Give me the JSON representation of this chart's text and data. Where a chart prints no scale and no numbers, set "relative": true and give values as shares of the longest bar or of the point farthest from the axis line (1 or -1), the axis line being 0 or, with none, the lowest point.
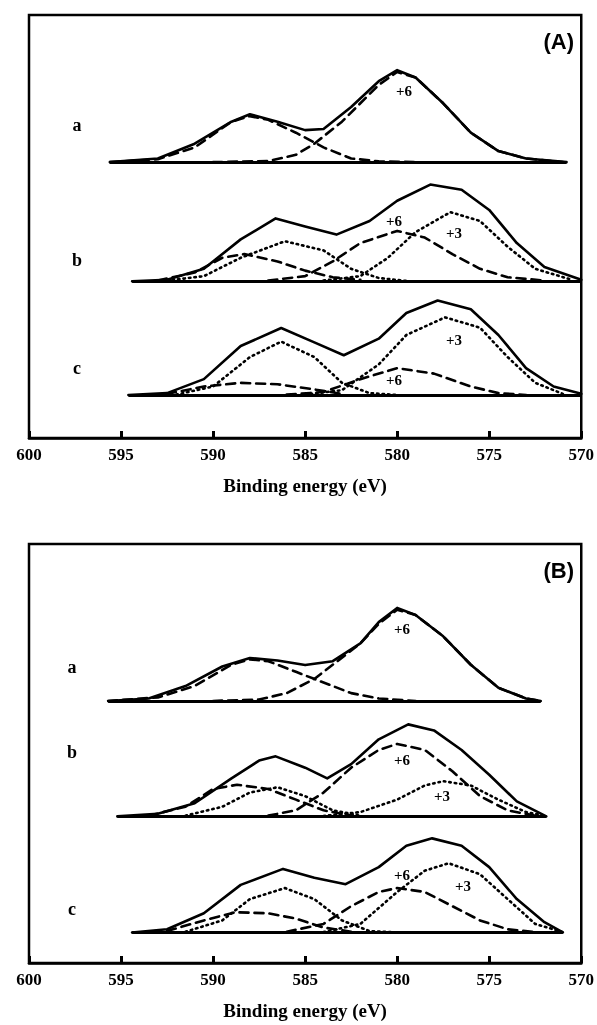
{
  "chart_data": [
    {
      "type": "line",
      "title": "(A)",
      "xlabel": "Binding energy (eV)",
      "relative": true,
      "marker": "none",
      "xlim": [
        600,
        570
      ],
      "xticks": [
        600,
        595,
        590,
        585,
        580,
        575,
        570
      ],
      "annotations": [
        "a",
        "+6",
        "b",
        "+6",
        "+3",
        "c",
        "+3",
        "+6"
      ],
      "ref_lines": [
        {
          "axis": "y",
          "value": 0.75,
          "color": "#000000"
        },
        {
          "axis": "y",
          "value": 0.426,
          "color": "#000000"
        },
        {
          "axis": "y",
          "value": 0.117,
          "color": "#000000"
        }
      ],
      "series": [
        {
          "color": "#000000",
          "line_style": "solid",
          "x": [
            595.6,
            593,
            591,
            589,
            588,
            586.5,
            585,
            584,
            582.5,
            581,
            580,
            579,
            577.5,
            576,
            574.5,
            573,
            570.8
          ],
          "values": [
            0.75,
            0.76,
            0.8,
            0.86,
            0.88,
            0.86,
            0.837,
            0.84,
            0.9,
            0.97,
            1.0,
            0.98,
            0.91,
            0.83,
            0.78,
            0.76,
            0.75
          ]
        },
        {
          "color": "#000000",
          "line_style": "dashed",
          "x": [
            595.6,
            593,
            591,
            589,
            588,
            587,
            585.5,
            584,
            582.5,
            581,
            579
          ],
          "values": [
            0.75,
            0.758,
            0.79,
            0.86,
            0.875,
            0.865,
            0.83,
            0.79,
            0.76,
            0.752,
            0.75
          ]
        },
        {
          "color": "#000000",
          "line_style": "dashed",
          "x": [
            590,
            587,
            585.5,
            584.5,
            583,
            582,
            581,
            580,
            579,
            577.5,
            576,
            574.5,
            573,
            571
          ],
          "values": [
            0.75,
            0.753,
            0.77,
            0.8,
            0.86,
            0.91,
            0.96,
            0.995,
            0.98,
            0.91,
            0.83,
            0.78,
            0.76,
            0.75
          ]
        },
        {
          "color": "#000000",
          "line_style": "solid",
          "x": [
            594.4,
            592.5,
            590.5,
            588.5,
            586.6,
            585,
            583.3,
            581.5,
            580,
            578.2,
            576.5,
            575,
            573.5,
            572,
            570
          ],
          "values": [
            0.426,
            0.43,
            0.46,
            0.54,
            0.597,
            0.575,
            0.553,
            0.59,
            0.645,
            0.689,
            0.675,
            0.62,
            0.53,
            0.465,
            0.43
          ]
        },
        {
          "color": "#000000",
          "line_style": "dotted",
          "x": [
            592.5,
            590.5,
            588.5,
            586.1,
            584,
            582.5,
            581,
            579.5
          ],
          "values": [
            0.428,
            0.44,
            0.49,
            0.535,
            0.51,
            0.46,
            0.435,
            0.427
          ]
        },
        {
          "color": "#000000",
          "line_style": "dotted",
          "x": [
            584,
            582,
            580.5,
            579,
            577.1,
            575.5,
            574,
            572.5,
            570.5
          ],
          "values": [
            0.428,
            0.44,
            0.49,
            0.56,
            0.614,
            0.59,
            0.52,
            0.46,
            0.43
          ]
        },
        {
          "color": "#000000",
          "line_style": "dashed",
          "x": [
            593,
            591,
            589.5,
            588.3,
            586.5,
            585,
            583.5,
            582
          ],
          "values": [
            0.428,
            0.45,
            0.49,
            0.5,
            0.48,
            0.455,
            0.437,
            0.43
          ]
        },
        {
          "color": "#000000",
          "line_style": "dashed",
          "x": [
            587,
            585,
            583.5,
            582,
            580,
            578.5,
            577,
            575.5,
            574,
            572
          ],
          "values": [
            0.428,
            0.44,
            0.48,
            0.53,
            0.563,
            0.545,
            0.5,
            0.46,
            0.437,
            0.428
          ]
        },
        {
          "color": "#000000",
          "line_style": "solid",
          "x": [
            594.6,
            592.5,
            590.5,
            588.5,
            586.3,
            584.5,
            582.9,
            581,
            579.5,
            577.8,
            576,
            574.5,
            573,
            571.5,
            570
          ],
          "values": [
            0.117,
            0.122,
            0.16,
            0.25,
            0.299,
            0.26,
            0.225,
            0.27,
            0.34,
            0.374,
            0.35,
            0.28,
            0.19,
            0.14,
            0.12
          ]
        },
        {
          "color": "#000000",
          "line_style": "dotted",
          "x": [
            592,
            590,
            588,
            586.3,
            584.5,
            583,
            581.5,
            580
          ],
          "values": [
            0.118,
            0.14,
            0.22,
            0.262,
            0.22,
            0.15,
            0.122,
            0.117
          ]
        },
        {
          "color": "#000000",
          "line_style": "dotted",
          "x": [
            585,
            583,
            581,
            579.5,
            577.4,
            575.5,
            574,
            572.5,
            571
          ],
          "values": [
            0.118,
            0.13,
            0.2,
            0.28,
            0.328,
            0.3,
            0.22,
            0.15,
            0.12
          ]
        },
        {
          "color": "#000000",
          "line_style": "dashed",
          "x": [
            592.5,
            590.5,
            588.5,
            586.5,
            584.5,
            583
          ],
          "values": [
            0.12,
            0.14,
            0.15,
            0.146,
            0.132,
            0.12
          ]
        },
        {
          "color": "#000000",
          "line_style": "dashed",
          "x": [
            586,
            584,
            582,
            580,
            578,
            576,
            574.5,
            573
          ],
          "values": [
            0.118,
            0.125,
            0.16,
            0.19,
            0.175,
            0.14,
            0.122,
            0.117
          ]
        }
      ]
    },
    {
      "type": "line",
      "title": "(B)",
      "xlabel": "Binding energy (eV)",
      "relative": true,
      "marker": "none",
      "xlim": [
        600,
        570
      ],
      "xticks": [
        600,
        595,
        590,
        585,
        580,
        575,
        570
      ],
      "annotations": [
        "a",
        "+6",
        "b",
        "+6",
        "+3",
        "c",
        "+6",
        "+3"
      ],
      "ref_lines": [
        {
          "axis": "y",
          "value": 0.738,
          "color": "#000000"
        },
        {
          "axis": "y",
          "value": 0.413,
          "color": "#000000"
        },
        {
          "axis": "y",
          "value": 0.086,
          "color": "#000000"
        }
      ],
      "series": [
        {
          "color": "#000000",
          "line_style": "solid",
          "x": [
            595.7,
            593.5,
            591.5,
            589.5,
            588,
            586.5,
            585,
            583.5,
            582,
            581,
            580,
            579,
            577.5,
            576,
            574.5,
            573,
            572.2
          ],
          "values": [
            0.738,
            0.745,
            0.78,
            0.835,
            0.859,
            0.852,
            0.839,
            0.85,
            0.9,
            0.96,
            1.0,
            0.98,
            0.92,
            0.84,
            0.775,
            0.745,
            0.738
          ]
        },
        {
          "color": "#000000",
          "line_style": "dashed",
          "x": [
            595.7,
            593,
            591,
            589,
            588,
            587,
            585.5,
            584,
            582.5,
            581,
            579
          ],
          "values": [
            0.738,
            0.748,
            0.78,
            0.84,
            0.855,
            0.85,
            0.82,
            0.79,
            0.76,
            0.745,
            0.738
          ]
        },
        {
          "color": "#000000",
          "line_style": "dashed",
          "x": [
            590,
            587.5,
            586,
            584.5,
            583,
            582,
            581,
            580,
            579,
            577.5,
            576,
            574.5,
            573,
            572.2
          ],
          "values": [
            0.738,
            0.742,
            0.76,
            0.8,
            0.86,
            0.9,
            0.955,
            0.995,
            0.98,
            0.92,
            0.84,
            0.775,
            0.745,
            0.738
          ]
        },
        {
          "color": "#000000",
          "line_style": "solid",
          "x": [
            595.2,
            593,
            591,
            589,
            587.5,
            586.6,
            585,
            583.8,
            582.5,
            581,
            579.4,
            578,
            576.5,
            575,
            573.5,
            571.9
          ],
          "values": [
            0.413,
            0.42,
            0.45,
            0.52,
            0.57,
            0.582,
            0.55,
            0.52,
            0.56,
            0.63,
            0.672,
            0.655,
            0.6,
            0.53,
            0.455,
            0.413
          ]
        },
        {
          "color": "#000000",
          "line_style": "dashed",
          "x": [
            593.5,
            591.5,
            590,
            588.7,
            587,
            585.5,
            584,
            582.5
          ],
          "values": [
            0.415,
            0.44,
            0.49,
            0.502,
            0.49,
            0.46,
            0.43,
            0.415
          ]
        },
        {
          "color": "#000000",
          "line_style": "dashed",
          "x": [
            587,
            585.5,
            584,
            582.5,
            581,
            580,
            578.5,
            577,
            575.5,
            574,
            572.5
          ],
          "values": [
            0.415,
            0.43,
            0.48,
            0.55,
            0.6,
            0.617,
            0.6,
            0.54,
            0.47,
            0.43,
            0.415
          ]
        },
        {
          "color": "#000000",
          "line_style": "dotted",
          "x": [
            591.5,
            589.5,
            588,
            586.5,
            585,
            583.5,
            582
          ],
          "values": [
            0.415,
            0.44,
            0.48,
            0.495,
            0.47,
            0.43,
            0.415
          ]
        },
        {
          "color": "#000000",
          "line_style": "dotted",
          "x": [
            584,
            582,
            580,
            578.5,
            577.5,
            576,
            574.5,
            573,
            571.9
          ],
          "values": [
            0.414,
            0.425,
            0.46,
            0.5,
            0.512,
            0.5,
            0.46,
            0.425,
            0.414
          ]
        },
        {
          "color": "#000000",
          "line_style": "solid",
          "x": [
            594.4,
            592.5,
            590.5,
            588.5,
            586.2,
            584.5,
            582.8,
            581,
            579.5,
            578.1,
            576.5,
            575,
            573.5,
            572,
            571
          ],
          "values": [
            0.086,
            0.095,
            0.14,
            0.22,
            0.265,
            0.24,
            0.222,
            0.27,
            0.33,
            0.351,
            0.33,
            0.27,
            0.18,
            0.115,
            0.086
          ]
        },
        {
          "color": "#000000",
          "line_style": "dotted",
          "x": [
            591.5,
            589.5,
            588,
            586.1,
            584.5,
            583,
            581.5,
            580
          ],
          "values": [
            0.088,
            0.12,
            0.18,
            0.211,
            0.18,
            0.12,
            0.09,
            0.086
          ]
        },
        {
          "color": "#000000",
          "line_style": "dotted",
          "x": [
            584,
            582,
            580,
            578.5,
            577.2,
            575.5,
            574,
            572.5,
            571
          ],
          "values": [
            0.087,
            0.11,
            0.2,
            0.26,
            0.281,
            0.25,
            0.18,
            0.11,
            0.087
          ]
        },
        {
          "color": "#000000",
          "line_style": "dashed",
          "x": [
            592.5,
            590.5,
            588.8,
            587,
            585.5,
            584,
            582.5
          ],
          "values": [
            0.09,
            0.12,
            0.143,
            0.14,
            0.125,
            0.1,
            0.088
          ]
        },
        {
          "color": "#000000",
          "line_style": "dashed",
          "x": [
            586,
            584,
            582.5,
            581,
            580,
            578.5,
            577,
            575.5,
            574,
            572.5
          ],
          "values": [
            0.088,
            0.11,
            0.16,
            0.2,
            0.211,
            0.2,
            0.16,
            0.12,
            0.095,
            0.087
          ]
        }
      ]
    }
  ]
}
